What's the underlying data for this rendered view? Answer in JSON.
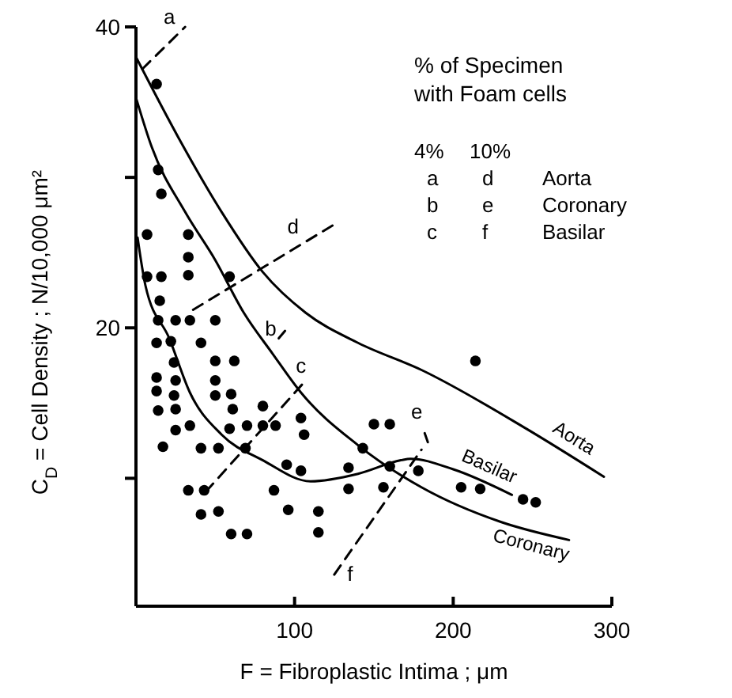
{
  "chart_data": {
    "type": "scatter",
    "xlabel": "F = Fibroplastic Intima ; μm",
    "ylabel": "C$_{D}$ = Cell Density ; N/10,000 μm²",
    "xlim": [
      0,
      300
    ],
    "ylim": [
      1.5,
      40
    ],
    "xticks": [
      100,
      200,
      300
    ],
    "yticks": [
      {
        "value": 10,
        "label": null
      },
      20,
      {
        "value": 30,
        "label": null
      },
      40
    ],
    "series": [
      {
        "type": "line",
        "name": "Aorta",
        "color": "#000000",
        "x": [
          0,
          27,
          54,
          80,
          107,
          140,
          180,
          246,
          295
        ],
        "values": [
          38,
          32.6,
          27.7,
          23.7,
          21,
          19,
          17.2,
          13.3,
          10.1
        ]
      },
      {
        "type": "line",
        "name": "Basilar",
        "color": "#000000",
        "x": [
          1,
          6,
          21,
          34,
          54,
          80,
          110,
          140,
          167,
          173,
          200,
          237
        ],
        "values": [
          26,
          22.8,
          19.3,
          15.7,
          12.9,
          11.2,
          9.8,
          10.3,
          11.2,
          11.3,
          10.6,
          8.9
        ]
      },
      {
        "type": "line",
        "name": "Coronary",
        "color": "#000000",
        "x": [
          0,
          10,
          31,
          50,
          68,
          86,
          104,
          140,
          180,
          230,
          273
        ],
        "values": [
          35.3,
          32,
          27.7,
          24.5,
          21,
          18.3,
          15.7,
          12.2,
          9.4,
          7.1,
          5.9
        ]
      },
      {
        "type": "line",
        "line_style": "dashed",
        "color": "#000000",
        "x": [
          4,
          31
        ],
        "values": [
          37.2,
          40
        ]
      },
      {
        "type": "line",
        "line_style": "dashed",
        "color": "#000000",
        "x": [
          90,
          94
        ],
        "values": [
          19.3,
          19.8
        ]
      },
      {
        "type": "line",
        "line_style": "dashed",
        "color": "#000000",
        "x": [
          44,
          107
        ],
        "values": [
          9.1,
          16.5
        ]
      },
      {
        "type": "line",
        "line_style": "dashed",
        "color": "#000000",
        "x": [
          36,
          127
        ],
        "values": [
          21.2,
          27
        ]
      },
      {
        "type": "line",
        "line_style": "dashed",
        "color": "#000000",
        "x": [
          182,
          184
        ],
        "values": [
          13,
          12.4
        ]
      },
      {
        "type": "line",
        "line_style": "dashed",
        "color": "#000000",
        "x": [
          125,
          180
        ],
        "values": [
          3.6,
          11.9
        ]
      },
      {
        "marker": "circle",
        "color": "#000000",
        "x": [
          13,
          14,
          16,
          7,
          33,
          33,
          33,
          7,
          16,
          59,
          15,
          14,
          25,
          34,
          50,
          13,
          22,
          41,
          24,
          50,
          62,
          13,
          25,
          50,
          13,
          24,
          50,
          60,
          14,
          25,
          61,
          80,
          104,
          25,
          34,
          59,
          70,
          80,
          88,
          106,
          150,
          160,
          17,
          41,
          52,
          69,
          143,
          95,
          104,
          134,
          160,
          178,
          33,
          43,
          87,
          134,
          156,
          41,
          52,
          96,
          115,
          60,
          70,
          115,
          214,
          205,
          217,
          244,
          252
        ],
        "values": [
          36.2,
          30.5,
          28.9,
          26.2,
          26.2,
          24.7,
          23.5,
          23.4,
          23.4,
          23.4,
          21.8,
          20.5,
          20.5,
          20.5,
          20.5,
          19,
          19.1,
          19,
          17.7,
          17.8,
          17.8,
          16.7,
          16.5,
          16.5,
          15.8,
          15.5,
          15.5,
          15.6,
          14.5,
          14.6,
          14.6,
          14.8,
          14,
          13.2,
          13.5,
          13.3,
          13.5,
          13.5,
          13.5,
          12.9,
          13.6,
          13.6,
          12.1,
          12,
          12,
          12,
          12,
          10.9,
          10.5,
          10.7,
          10.8,
          10.5,
          9.2,
          9.2,
          9.2,
          9.3,
          9.4,
          7.6,
          7.8,
          7.9,
          7.8,
          6.3,
          6.3,
          6.4,
          17.8,
          9.4,
          9.3,
          8.6,
          8.4
        ]
      }
    ],
    "annotations": [
      {
        "text": "a",
        "x": 31,
        "y": 40
      },
      {
        "text": "b",
        "x": 90,
        "y": 19.3
      },
      {
        "text": "c",
        "x": 107,
        "y": 16.5
      },
      {
        "text": "d",
        "x": 99,
        "y": 25.2
      },
      {
        "text": "e",
        "x": 182,
        "y": 13
      },
      {
        "text": "f",
        "x": 125,
        "y": 3.6
      },
      "% of Specimen",
      "with Foam cells",
      "4%",
      "10%",
      "a",
      "d",
      "Aorta",
      "b",
      "e",
      "Coronary",
      "c",
      "f",
      "Basilar"
    ]
  }
}
